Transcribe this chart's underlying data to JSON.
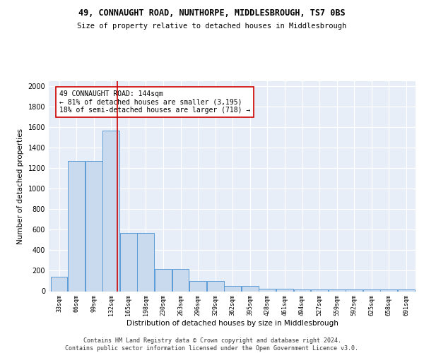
{
  "title": "49, CONNAUGHT ROAD, NUNTHORPE, MIDDLESBROUGH, TS7 0BS",
  "subtitle": "Size of property relative to detached houses in Middlesbrough",
  "xlabel": "Distribution of detached houses by size in Middlesbrough",
  "ylabel": "Number of detached properties",
  "bin_labels": [
    "33sqm",
    "66sqm",
    "99sqm",
    "132sqm",
    "165sqm",
    "198sqm",
    "230sqm",
    "263sqm",
    "296sqm",
    "329sqm",
    "362sqm",
    "395sqm",
    "428sqm",
    "461sqm",
    "494sqm",
    "527sqm",
    "559sqm",
    "592sqm",
    "625sqm",
    "658sqm",
    "691sqm"
  ],
  "bar_values": [
    140,
    1270,
    1270,
    1570,
    570,
    570,
    215,
    215,
    100,
    100,
    50,
    50,
    25,
    25,
    20,
    20,
    20,
    20,
    20,
    20,
    20
  ],
  "bar_color": "#c9d9ee",
  "bar_edge_color": "#5b9bd5",
  "bg_color": "#e8eef7",
  "grid_color": "#ffffff",
  "vline_x": 144,
  "vline_color": "#cc0000",
  "annotation_text": "49 CONNAUGHT ROAD: 144sqm\n← 81% of detached houses are smaller (3,195)\n18% of semi-detached houses are larger (718) →",
  "annotation_box_color": "#ffffff",
  "annotation_box_edge": "#cc0000",
  "ylim": [
    0,
    2050
  ],
  "yticks": [
    0,
    200,
    400,
    600,
    800,
    1000,
    1200,
    1400,
    1600,
    1800,
    2000
  ],
  "footer": "Contains HM Land Registry data © Crown copyright and database right 2024.\nContains public sector information licensed under the Open Government Licence v3.0.",
  "bin_width": 33,
  "title_fontsize": 8.5,
  "subtitle_fontsize": 7.5,
  "ylabel_fontsize": 7.5,
  "xlabel_fontsize": 7.5,
  "ytick_fontsize": 7,
  "xtick_fontsize": 6,
  "annot_fontsize": 7,
  "footer_fontsize": 6
}
